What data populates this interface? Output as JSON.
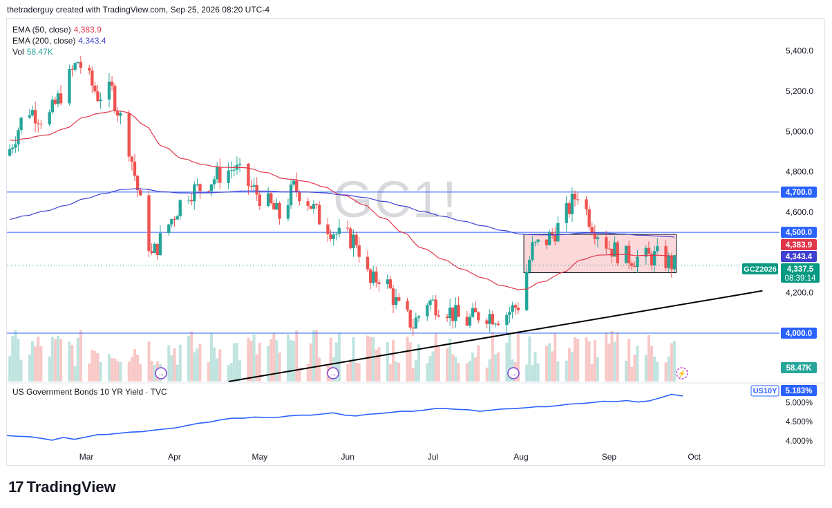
{
  "header": {
    "text": "thetraderguy created with TradingView.com, Sep 25, 2026 08:20 UTC-4"
  },
  "watermark": "GC1!",
  "legend": [
    {
      "label": "EMA (50, close)",
      "value": "4,383.9",
      "color": "#e0364a"
    },
    {
      "label": "EMA (200, close)",
      "value": "4,343.4",
      "color": "#3f3fd0"
    },
    {
      "label": "Vol",
      "value": "58.47K",
      "color": "#26a69a"
    }
  ],
  "footer": {
    "brand": "TradingView",
    "mark": "17"
  },
  "colors": {
    "up": "#26a69a",
    "down": "#ef5350",
    "ema50": "#e0364a",
    "ema200": "#3f3fd0",
    "hline": "#2962ff",
    "volUp": "#bfe4df",
    "volDown": "#f8c8c7",
    "yield": "#2962ff"
  },
  "chart_data": [
    {
      "type": "candlestick",
      "symbol": "GCZ2026",
      "x_axis": {
        "ticks": [
          "Mar",
          "Apr",
          "May",
          "Jun",
          "Jul",
          "Aug",
          "Sep",
          "Oct"
        ]
      },
      "y_axis": {
        "ticks": [
          "5,400.0",
          "5,200.0",
          "5,000.0",
          "4,800.0",
          "4,600.0",
          "4,200.0"
        ],
        "range": [
          3760,
          5560
        ]
      },
      "horizontal_lines": [
        {
          "label": "4,700.0",
          "value": 4700
        },
        {
          "label": "4,500.0",
          "value": 4500
        },
        {
          "label": "4,000.0",
          "value": 4000
        }
      ],
      "price_badges": [
        {
          "label": "4,383.9",
          "value": 4383.9,
          "kind": "ema50"
        },
        {
          "label": "4,343.4",
          "value": 4343.4,
          "kind": "ema200"
        },
        {
          "label": "4,337.5",
          "value": 4337.5,
          "kind": "last"
        }
      ],
      "countdown": "08:39:14",
      "volume_last": "58.47K",
      "rectangle": {
        "x_from": "2026-08-02",
        "x_to": "2026-09-30",
        "y_from": 4300,
        "y_to": 4490
      },
      "trendline": {
        "from": [
          "2026-05-01",
          3760
        ],
        "to": [
          "2026-10-25",
          4210
        ]
      },
      "key_candles_ohlc": [
        {
          "date": "2026-02-26",
          "o": 5240,
          "h": 5420,
          "l": 5060,
          "c": 5350
        },
        {
          "date": "2026-03-20",
          "o": 4900,
          "h": 4940,
          "l": 4620,
          "c": 4640
        },
        {
          "date": "2026-03-23",
          "o": 4560,
          "h": 4600,
          "l": 4100,
          "c": 4350
        },
        {
          "date": "2026-05-29",
          "o": 4480,
          "h": 4500,
          "l": 4330,
          "c": 4370
        },
        {
          "date": "2026-06-19",
          "o": 4080,
          "h": 4200,
          "l": 4030,
          "c": 4120
        },
        {
          "date": "2026-08-21",
          "o": 4660,
          "h": 4750,
          "l": 4620,
          "c": 4700
        },
        {
          "date": "2026-09-24",
          "o": 4370,
          "h": 4380,
          "l": 4300,
          "c": 4337.5
        }
      ]
    },
    {
      "type": "line",
      "title": "US Government Bonds 10 YR Yield · TVC",
      "symbol": "US10Y",
      "last": "5.183%",
      "y_axis": {
        "ticks": [
          "5.000%",
          "4.500%",
          "4.000%"
        ],
        "range": [
          3.82,
          5.4
        ]
      },
      "series": [
        {
          "values": [
            4.15,
            4.12,
            4.1,
            4.08,
            4.02,
            4.08,
            4.05,
            4.1,
            4.15,
            4.18,
            4.2,
            4.22,
            4.25,
            4.28,
            4.3,
            4.35,
            4.4,
            4.45,
            4.5,
            4.55,
            4.58,
            4.6,
            4.62,
            4.6,
            4.62,
            4.65,
            4.66,
            4.68,
            4.7,
            4.72,
            4.68,
            4.65,
            4.68,
            4.72,
            4.74,
            4.76,
            4.78,
            4.8,
            4.83,
            4.85,
            4.82,
            4.8,
            4.78,
            4.8,
            4.82,
            4.85,
            4.86,
            4.88,
            4.9,
            4.92,
            4.95,
            4.98,
            5.0,
            5.02,
            5.03,
            5.05,
            5.0,
            5.05,
            5.12,
            5.2,
            5.18
          ]
        }
      ]
    }
  ]
}
